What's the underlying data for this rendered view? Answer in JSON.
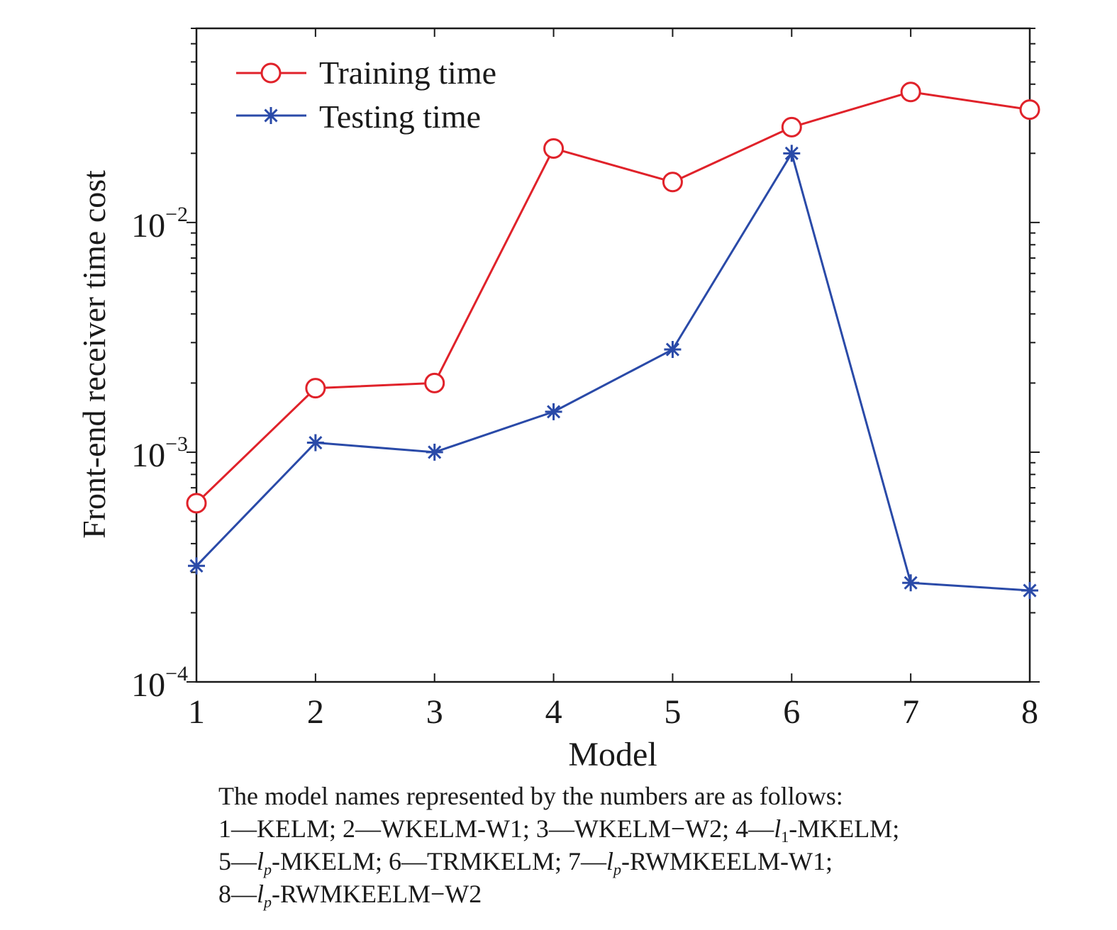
{
  "chart_data": {
    "type": "line",
    "ylabel": "Front-end receiver time cost",
    "xlabel": "Model",
    "y_scale": "log",
    "ylim": [
      0.0001,
      0.07
    ],
    "xlim": [
      1,
      8
    ],
    "x": [
      1,
      2,
      3,
      4,
      5,
      6,
      7,
      8
    ],
    "y_ticks": [
      {
        "value": 0.0001,
        "label": "10",
        "exp": "−4"
      },
      {
        "value": 0.001,
        "label": "10",
        "exp": "−3"
      },
      {
        "value": 0.01,
        "label": "10",
        "exp": "−2"
      }
    ],
    "legend_position": "top-left",
    "grid": false,
    "series": [
      {
        "name": "Training time",
        "color": "#e0222a",
        "marker": "circle",
        "values": [
          0.0006,
          0.0019,
          0.002,
          0.021,
          0.015,
          0.026,
          0.037,
          0.031
        ]
      },
      {
        "name": "Testing time",
        "color": "#2a4aa8",
        "marker": "asterisk",
        "values": [
          0.00032,
          0.0011,
          0.001,
          0.0015,
          0.0028,
          0.02,
          0.00027,
          0.00025
        ]
      }
    ]
  },
  "caption": {
    "intro": "The model names represented by the numbers are as follows:",
    "l1_a": "1—KELM; 2—WKELM-W1; 3—WKELM−W2; 4—",
    "l1_b": "l",
    "l1_c": "1",
    "l1_d": "-MKELM;",
    "l2_a": "5—",
    "l2_b": "l",
    "l2_c": "p",
    "l2_d": "-MKELM; 6—TRMKELM; 7—",
    "l2_e": "l",
    "l2_f": "p",
    "l2_g": "-RWMKEELM-W1;",
    "l3_a": "8—",
    "l3_b": "l",
    "l3_c": "p",
    "l3_d": "-RWMKEELM−W2"
  }
}
